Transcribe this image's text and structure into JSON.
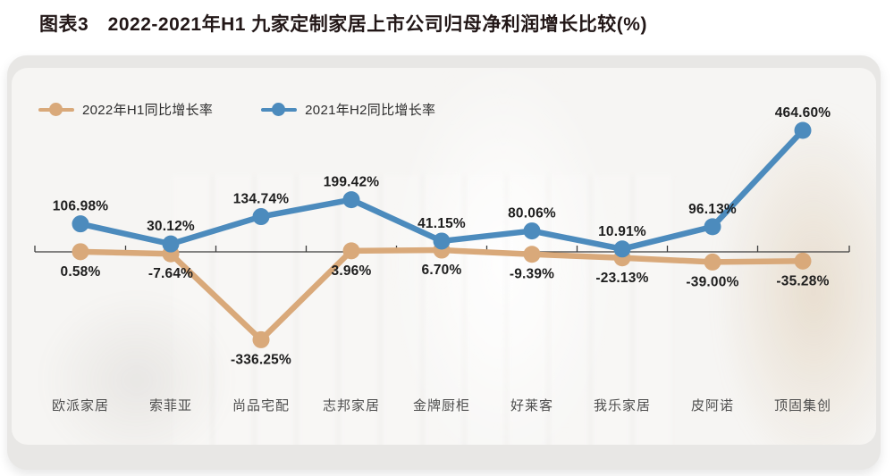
{
  "title": "图表3　2022-2021年H1 九家定制家居上市公司归母净利润增长比较(%)",
  "legend": {
    "items": [
      {
        "label": "2022年H1同比增长率",
        "color": "#d9a97a"
      },
      {
        "label": "2021年H2同比增长率",
        "color": "#4c8bbd"
      }
    ]
  },
  "chart_data": {
    "type": "line",
    "title": "图表3　2022-2021年H1 九家定制家居上市公司归母净利润增长比较(%)",
    "categories": [
      "欧派家居",
      "索菲亚",
      "尚品宅配",
      "志邦家居",
      "金牌厨柜",
      "好莱客",
      "我乐家居",
      "皮阿诺",
      "顶固集创"
    ],
    "series": [
      {
        "name": "2022年H1同比增长率",
        "color": "#d9a97a",
        "label_position": "below",
        "values": [
          0.58,
          -7.64,
          -336.25,
          3.96,
          6.7,
          -9.39,
          -23.13,
          -39.0,
          -35.28
        ],
        "labels": [
          "0.58%",
          "-7.64%",
          "-336.25%",
          "3.96%",
          "6.70%",
          "-9.39%",
          "-23.13%",
          "-39.00%",
          "-35.28%"
        ]
      },
      {
        "name": "2021年H2同比增长率",
        "color": "#4c8bbd",
        "label_position": "above",
        "values": [
          106.98,
          30.12,
          134.74,
          199.42,
          41.15,
          80.06,
          10.91,
          96.13,
          464.6
        ],
        "labels": [
          "106.98%",
          "30.12%",
          "134.74%",
          "199.42%",
          "41.15%",
          "80.06%",
          "10.91%",
          "96.13%",
          "464.60%"
        ]
      }
    ],
    "xlabel": "",
    "ylabel": "",
    "ylim": [
      -400,
      520
    ],
    "grid": false,
    "legend_position": "top-left",
    "axis_color": "#3c3c3c",
    "data_label_color": "#1e1e1e",
    "category_label_color": "#4e4e4e"
  }
}
